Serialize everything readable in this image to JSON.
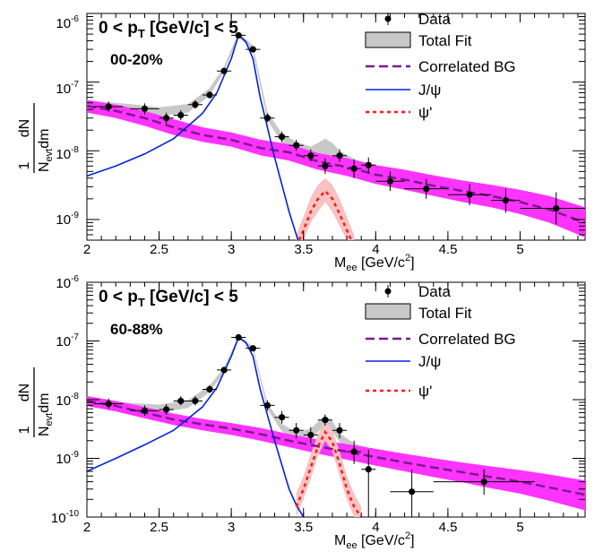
{
  "chart_data": [
    {
      "type": "scatter",
      "panel_label": "00-20%",
      "cut_label": "0 < p",
      "cut_sub": "T",
      "cut_rest": " [GeV/c] < 5",
      "xlabel_main": "M",
      "xlabel_sub": "ee",
      "xlabel_rest": " [GeV/c",
      "xlabel_sup": "2",
      "xlabel_end": "]",
      "ylabel_top": "1",
      "ylabel_dn": "dN",
      "ylabel_bot_main": "N",
      "ylabel_bot_sub": "evt",
      "ylabel_bot_rest": "dm",
      "xlim": [
        2.0,
        5.45
      ],
      "ylim": [
        5e-10,
        1e-06
      ],
      "log_y": true,
      "x_ticks": [
        2,
        2.5,
        3,
        3.5,
        4,
        4.5,
        5
      ],
      "x_tick_labels": [
        "2",
        "2.5",
        "3",
        "3.5",
        "4",
        "4.5",
        "5"
      ],
      "y_ticks": [
        1e-09,
        1e-08,
        1e-07,
        1e-06
      ],
      "y_tick_bases": [
        "10",
        "10",
        "10",
        "10"
      ],
      "y_tick_exps": [
        "-9",
        "-8",
        "-7",
        "-6"
      ],
      "data": [
        {
          "x": 2.15,
          "y": 4.4e-08,
          "xerr": 0.1,
          "ylo": 3.7e-08,
          "yhi": 5.2e-08
        },
        {
          "x": 2.4,
          "y": 4.1e-08,
          "xerr": 0.1,
          "ylo": 3.4e-08,
          "yhi": 4.9e-08
        },
        {
          "x": 2.55,
          "y": 3e-08,
          "xerr": 0.05,
          "ylo": 2.5e-08,
          "yhi": 3.6e-08
        },
        {
          "x": 2.65,
          "y": 3.3e-08,
          "xerr": 0.05,
          "ylo": 2.8e-08,
          "yhi": 3.9e-08
        },
        {
          "x": 2.75,
          "y": 4.7e-08,
          "xerr": 0.05,
          "ylo": 4.1e-08,
          "yhi": 5.4e-08
        },
        {
          "x": 2.85,
          "y": 6.5e-08,
          "xerr": 0.05,
          "ylo": 5.8e-08,
          "yhi": 7.3e-08
        },
        {
          "x": 2.95,
          "y": 1.45e-07,
          "xerr": 0.05,
          "ylo": 1.35e-07,
          "yhi": 1.55e-07
        },
        {
          "x": 3.05,
          "y": 4.8e-07,
          "xerr": 0.05,
          "ylo": 4.6e-07,
          "yhi": 5e-07
        },
        {
          "x": 3.15,
          "y": 3e-07,
          "xerr": 0.05,
          "ylo": 2.85e-07,
          "yhi": 3.15e-07
        },
        {
          "x": 3.25,
          "y": 3e-08,
          "xerr": 0.05,
          "ylo": 2.6e-08,
          "yhi": 3.5e-08
        },
        {
          "x": 3.35,
          "y": 1.6e-08,
          "xerr": 0.05,
          "ylo": 1.35e-08,
          "yhi": 1.9e-08
        },
        {
          "x": 3.45,
          "y": 1.2e-08,
          "xerr": 0.05,
          "ylo": 1e-08,
          "yhi": 1.45e-08
        },
        {
          "x": 3.55,
          "y": 8.5e-09,
          "xerr": 0.05,
          "ylo": 7e-09,
          "yhi": 1.05e-08
        },
        {
          "x": 3.65,
          "y": 6e-09,
          "xerr": 0.05,
          "ylo": 4.6e-09,
          "yhi": 7.8e-09
        },
        {
          "x": 3.75,
          "y": 8.5e-09,
          "xerr": 0.05,
          "ylo": 6.9e-09,
          "yhi": 1.05e-08
        },
        {
          "x": 3.85,
          "y": 5.5e-09,
          "xerr": 0.05,
          "ylo": 4e-09,
          "yhi": 7.5e-09
        },
        {
          "x": 3.95,
          "y": 6.2e-09,
          "xerr": 0.05,
          "ylo": 4.7e-09,
          "yhi": 8e-09
        },
        {
          "x": 4.1,
          "y": 3.6e-09,
          "xerr": 0.1,
          "ylo": 2.6e-09,
          "yhi": 5e-09
        },
        {
          "x": 4.35,
          "y": 2.8e-09,
          "xerr": 0.15,
          "ylo": 2e-09,
          "yhi": 3.9e-09
        },
        {
          "x": 4.65,
          "y": 2.3e-09,
          "xerr": 0.15,
          "ylo": 1.6e-09,
          "yhi": 3.3e-09
        },
        {
          "x": 4.9,
          "y": 1.9e-09,
          "xerr": 0.1,
          "ylo": 1.25e-09,
          "yhi": 2.8e-09
        },
        {
          "x": 5.25,
          "y": 1.45e-09,
          "xerr": 0.25,
          "ylo": 8.5e-10,
          "yhi": 2.5e-09
        }
      ],
      "total_fit_x": [
        2.0,
        2.3,
        2.5,
        2.7,
        2.85,
        2.95,
        3.05,
        3.15,
        3.25,
        3.35,
        3.45,
        3.55,
        3.6,
        3.65,
        3.7,
        3.75,
        3.85,
        4.0,
        4.3,
        4.6,
        5.0,
        5.3
      ],
      "total_fit_lo": [
        4.2e-08,
        3.6e-08,
        3.2e-08,
        3.6e-08,
        6.4e-08,
        1.4e-07,
        4.6e-07,
        2.8e-07,
        2.8e-08,
        1.3e-08,
        9.5e-09,
        7.5e-09,
        7.6e-09,
        8e-09,
        7.4e-09,
        6.2e-09,
        5.4e-09,
        4.6e-09,
        3.5e-09,
        2.6e-09,
        1.8e-09,
        1.35e-09
      ],
      "total_fit_hi": [
        5.4e-08,
        4.8e-08,
        4.3e-08,
        4.8e-08,
        8.2e-08,
        1.7e-07,
        5.3e-07,
        3.4e-07,
        3.7e-08,
        1.8e-08,
        1.35e-08,
        1.15e-08,
        1.3e-08,
        1.5e-08,
        1.3e-08,
        1e-08,
        7.6e-09,
        6e-09,
        4.5e-09,
        3.4e-09,
        2.4e-09,
        1.8e-09
      ],
      "corr_x": [
        2.0,
        2.2,
        2.4,
        2.6,
        2.8,
        3.0,
        3.2,
        3.4,
        3.6,
        3.8,
        4.0,
        4.2,
        4.4,
        4.6,
        4.8,
        5.0,
        5.2,
        5.45
      ],
      "corr_y": [
        4.5e-08,
        3.8e-08,
        3e-08,
        2.2e-08,
        1.7e-08,
        1.45e-08,
        1.1e-08,
        9.5e-09,
        7e-09,
        5.8e-09,
        4.5e-09,
        3.8e-09,
        3.1e-09,
        2.6e-09,
        2.2e-09,
        1.8e-09,
        1.4e-09,
        9e-10
      ],
      "corr_lo": [
        3.6e-08,
        3e-08,
        2.3e-08,
        1.7e-08,
        1.35e-08,
        1.15e-08,
        8.6e-09,
        7.2e-09,
        5.3e-09,
        4.3e-09,
        3.3e-09,
        2.7e-09,
        2.2e-09,
        1.8e-09,
        1.5e-09,
        1.2e-09,
        9e-10,
        5.5e-10
      ],
      "corr_hi": [
        5.5e-08,
        4.7e-08,
        3.8e-08,
        2.9e-08,
        2.2e-08,
        1.85e-08,
        1.45e-08,
        1.25e-08,
        9.3e-09,
        7.8e-09,
        6.2e-09,
        5.3e-09,
        4.4e-09,
        3.7e-09,
        3.2e-09,
        2.7e-09,
        2.2e-09,
        1.5e-09
      ],
      "jpsi_x": [
        2.0,
        2.2,
        2.4,
        2.6,
        2.8,
        2.9,
        3.0,
        3.05,
        3.1,
        3.15,
        3.2,
        3.3,
        3.4,
        3.45,
        3.5
      ],
      "jpsi_y": [
        4.3e-09,
        6e-09,
        9e-09,
        1.5e-08,
        3.5e-08,
        7e-08,
        2.2e-07,
        4.8e-07,
        3.9e-07,
        2.2e-07,
        6e-08,
        8e-09,
        1.3e-09,
        6e-10,
        3e-10
      ],
      "psi_x": [
        3.45,
        3.5,
        3.55,
        3.6,
        3.65,
        3.7,
        3.75,
        3.8,
        3.85
      ],
      "psi_y": [
        4e-10,
        7e-10,
        1.3e-09,
        2e-09,
        2.6e-09,
        2e-09,
        1.2e-09,
        7e-10,
        4e-10
      ],
      "psi_lo": [
        3e-10,
        5e-10,
        9e-10,
        1.3e-09,
        1.8e-09,
        1.3e-09,
        8e-10,
        5e-10,
        3e-10
      ],
      "psi_hi": [
        6e-10,
        1.1e-09,
        2.1e-09,
        3.2e-09,
        4e-09,
        3.2e-09,
        2e-09,
        1.1e-09,
        6e-10
      ]
    },
    {
      "type": "scatter",
      "panel_label": "60-88%",
      "cut_label": "0 < p",
      "cut_sub": "T",
      "cut_rest": " [GeV/c] < 5",
      "xlabel_main": "M",
      "xlabel_sub": "ee",
      "xlabel_rest": " [GeV/c",
      "xlabel_sup": "2",
      "xlabel_end": "]",
      "ylabel_top": "1",
      "ylabel_dn": "dN",
      "ylabel_bot_main": "N",
      "ylabel_bot_sub": "evt",
      "ylabel_bot_rest": "dm",
      "xlim": [
        2.0,
        5.45
      ],
      "ylim": [
        1e-10,
        1e-06
      ],
      "log_y": true,
      "x_ticks": [
        2,
        2.5,
        3,
        3.5,
        4,
        4.5,
        5
      ],
      "x_tick_labels": [
        "2",
        "2.5",
        "3",
        "3.5",
        "4",
        "4.5",
        "5"
      ],
      "y_ticks": [
        1e-10,
        1e-09,
        1e-08,
        1e-07,
        1e-06
      ],
      "y_tick_bases": [
        "10",
        "10",
        "10",
        "10",
        "10"
      ],
      "y_tick_exps": [
        "-10",
        "-9",
        "-8",
        "-7",
        "-6"
      ],
      "data": [
        {
          "x": 2.15,
          "y": 8.5e-09,
          "xerr": 0.1,
          "ylo": 7e-09,
          "yhi": 1.05e-08
        },
        {
          "x": 2.4,
          "y": 6.5e-09,
          "xerr": 0.1,
          "ylo": 5.3e-09,
          "yhi": 8e-09
        },
        {
          "x": 2.55,
          "y": 6.8e-09,
          "xerr": 0.05,
          "ylo": 5.5e-09,
          "yhi": 8.4e-09
        },
        {
          "x": 2.65,
          "y": 9.5e-09,
          "xerr": 0.05,
          "ylo": 8e-09,
          "yhi": 1.15e-08
        },
        {
          "x": 2.75,
          "y": 9.5e-09,
          "xerr": 0.05,
          "ylo": 8e-09,
          "yhi": 1.15e-08
        },
        {
          "x": 2.85,
          "y": 1.5e-08,
          "xerr": 0.05,
          "ylo": 1.3e-08,
          "yhi": 1.75e-08
        },
        {
          "x": 2.95,
          "y": 3.2e-08,
          "xerr": 0.05,
          "ylo": 2.9e-08,
          "yhi": 3.6e-08
        },
        {
          "x": 3.05,
          "y": 1.15e-07,
          "xerr": 0.05,
          "ylo": 1.08e-07,
          "yhi": 1.22e-07
        },
        {
          "x": 3.15,
          "y": 7.5e-08,
          "xerr": 0.05,
          "ylo": 7e-08,
          "yhi": 8.1e-08
        },
        {
          "x": 3.25,
          "y": 8e-09,
          "xerr": 0.05,
          "ylo": 6.5e-09,
          "yhi": 9.8e-09
        },
        {
          "x": 3.35,
          "y": 5e-09,
          "xerr": 0.05,
          "ylo": 3.9e-09,
          "yhi": 6.4e-09
        },
        {
          "x": 3.45,
          "y": 3e-09,
          "xerr": 0.05,
          "ylo": 2.2e-09,
          "yhi": 4e-09
        },
        {
          "x": 3.55,
          "y": 2.5e-09,
          "xerr": 0.05,
          "ylo": 1.8e-09,
          "yhi": 3.4e-09
        },
        {
          "x": 3.65,
          "y": 4.5e-09,
          "xerr": 0.05,
          "ylo": 3.6e-09,
          "yhi": 5.6e-09
        },
        {
          "x": 3.75,
          "y": 3e-09,
          "xerr": 0.05,
          "ylo": 2.2e-09,
          "yhi": 4e-09
        },
        {
          "x": 3.85,
          "y": 1.3e-09,
          "xerr": 0.05,
          "ylo": 8e-10,
          "yhi": 2e-09
        },
        {
          "x": 3.95,
          "y": 6.5e-10,
          "xerr": 0.05,
          "ylo": 1e-10,
          "yhi": 1.4e-09
        },
        {
          "x": 4.25,
          "y": 2.7e-10,
          "xerr": 0.15,
          "ylo": 1e-10,
          "yhi": 6.5e-10
        },
        {
          "x": 4.75,
          "y": 4e-10,
          "xerr": 0.35,
          "ylo": 2.4e-10,
          "yhi": 6.5e-10
        }
      ],
      "total_fit_x": [
        2.0,
        2.3,
        2.5,
        2.7,
        2.85,
        2.95,
        3.05,
        3.15,
        3.25,
        3.35,
        3.45,
        3.55,
        3.6,
        3.65,
        3.7,
        3.75,
        3.85,
        4.0,
        4.3,
        4.6,
        5.0,
        5.3
      ],
      "total_fit_lo": [
        8e-09,
        6.6e-09,
        6e-09,
        7.2e-09,
        1.35e-08,
        2.9e-08,
        1.1e-07,
        7e-08,
        6.8e-09,
        2.9e-09,
        2e-09,
        2.2e-09,
        2.8e-09,
        3.6e-09,
        2.9e-09,
        1.9e-09,
        1.3e-09,
        1e-09,
        8e-10,
        6e-10,
        4.5e-10,
        3.5e-10
      ],
      "total_fit_hi": [
        1.05e-08,
        8.8e-09,
        8.2e-09,
        9.8e-09,
        1.75e-08,
        3.5e-08,
        1.22e-07,
        8e-08,
        8.6e-09,
        3.9e-09,
        2.8e-09,
        3.2e-09,
        4.2e-09,
        5.4e-09,
        4.3e-09,
        2.7e-09,
        1.8e-09,
        1.4e-09,
        1.1e-09,
        8.5e-10,
        6.2e-10,
        4.8e-10
      ],
      "corr_x": [
        2.0,
        2.2,
        2.4,
        2.6,
        2.8,
        3.0,
        3.2,
        3.4,
        3.6,
        3.8,
        4.0,
        4.2,
        4.4,
        4.6,
        4.8,
        5.0,
        5.2,
        5.45
      ],
      "corr_y": [
        9.5e-09,
        7.8e-09,
        6e-09,
        4.6e-09,
        3.8e-09,
        3.2e-09,
        2.6e-09,
        2e-09,
        1.6e-09,
        1.3e-09,
        1.05e-09,
        8.5e-10,
        7e-10,
        5.8e-10,
        4.8e-10,
        4e-10,
        3.2e-10,
        2.4e-10
      ],
      "corr_lo": [
        7.8e-09,
        6.3e-09,
        4.8e-09,
        3.7e-09,
        3e-09,
        2.5e-09,
        2e-09,
        1.55e-09,
        1.2e-09,
        9.5e-10,
        7.5e-10,
        6e-10,
        4.8e-10,
        3.9e-10,
        3.1e-10,
        2.5e-10,
        1.9e-10,
        1.3e-10
      ],
      "corr_hi": [
        1.15e-08,
        9.5e-09,
        7.5e-09,
        5.8e-09,
        4.7e-09,
        4e-09,
        3.3e-09,
        2.6e-09,
        2.1e-09,
        1.75e-09,
        1.45e-09,
        1.2e-09,
        1e-09,
        8.5e-10,
        7.3e-10,
        6.3e-10,
        5.3e-10,
        4.2e-10
      ],
      "jpsi_x": [
        2.0,
        2.2,
        2.4,
        2.6,
        2.8,
        2.9,
        3.0,
        3.05,
        3.1,
        3.15,
        3.2,
        3.3,
        3.4,
        3.45,
        3.5
      ],
      "jpsi_y": [
        6e-10,
        1e-09,
        1.7e-09,
        3e-09,
        7.5e-09,
        1.6e-08,
        5.5e-08,
        1.15e-07,
        9.5e-08,
        5.5e-08,
        1.5e-08,
        2e-09,
        3e-10,
        1.6e-10,
        1e-10
      ],
      "psi_x": [
        3.45,
        3.5,
        3.55,
        3.6,
        3.65,
        3.7,
        3.75,
        3.8,
        3.85,
        3.9
      ],
      "psi_y": [
        1.5e-10,
        3e-10,
        7e-10,
        1.6e-09,
        2.8e-09,
        1.9e-09,
        8e-10,
        3e-10,
        1.5e-10,
        1e-10
      ],
      "psi_lo": [
        1e-10,
        2e-10,
        4.5e-10,
        1.1e-09,
        2e-09,
        1.3e-09,
        5e-10,
        2e-10,
        1e-10,
        1e-10
      ],
      "psi_hi": [
        2.5e-10,
        5e-10,
        1.2e-09,
        2.5e-09,
        4.2e-09,
        3e-09,
        1.3e-09,
        5e-10,
        2.5e-10,
        1.5e-10
      ]
    }
  ],
  "legend": [
    {
      "label": "Data",
      "kind": "marker"
    },
    {
      "label": "Total Fit",
      "kind": "box"
    },
    {
      "label": "Correlated BG",
      "kind": "dash"
    },
    {
      "label": "J/ψ",
      "kind": "line"
    },
    {
      "label": "ψ'",
      "kind": "dot"
    }
  ],
  "colors": {
    "data": "#000000",
    "total_fit_fill": "#c8c8c8",
    "total_fit_edge": "#000000",
    "corr_line": "#7a1a8c",
    "corr_band": "#ff33ff",
    "jpsi": "#0022dd",
    "psi_line": "#ff1a1a",
    "psi_band": "#f7c2c2"
  }
}
